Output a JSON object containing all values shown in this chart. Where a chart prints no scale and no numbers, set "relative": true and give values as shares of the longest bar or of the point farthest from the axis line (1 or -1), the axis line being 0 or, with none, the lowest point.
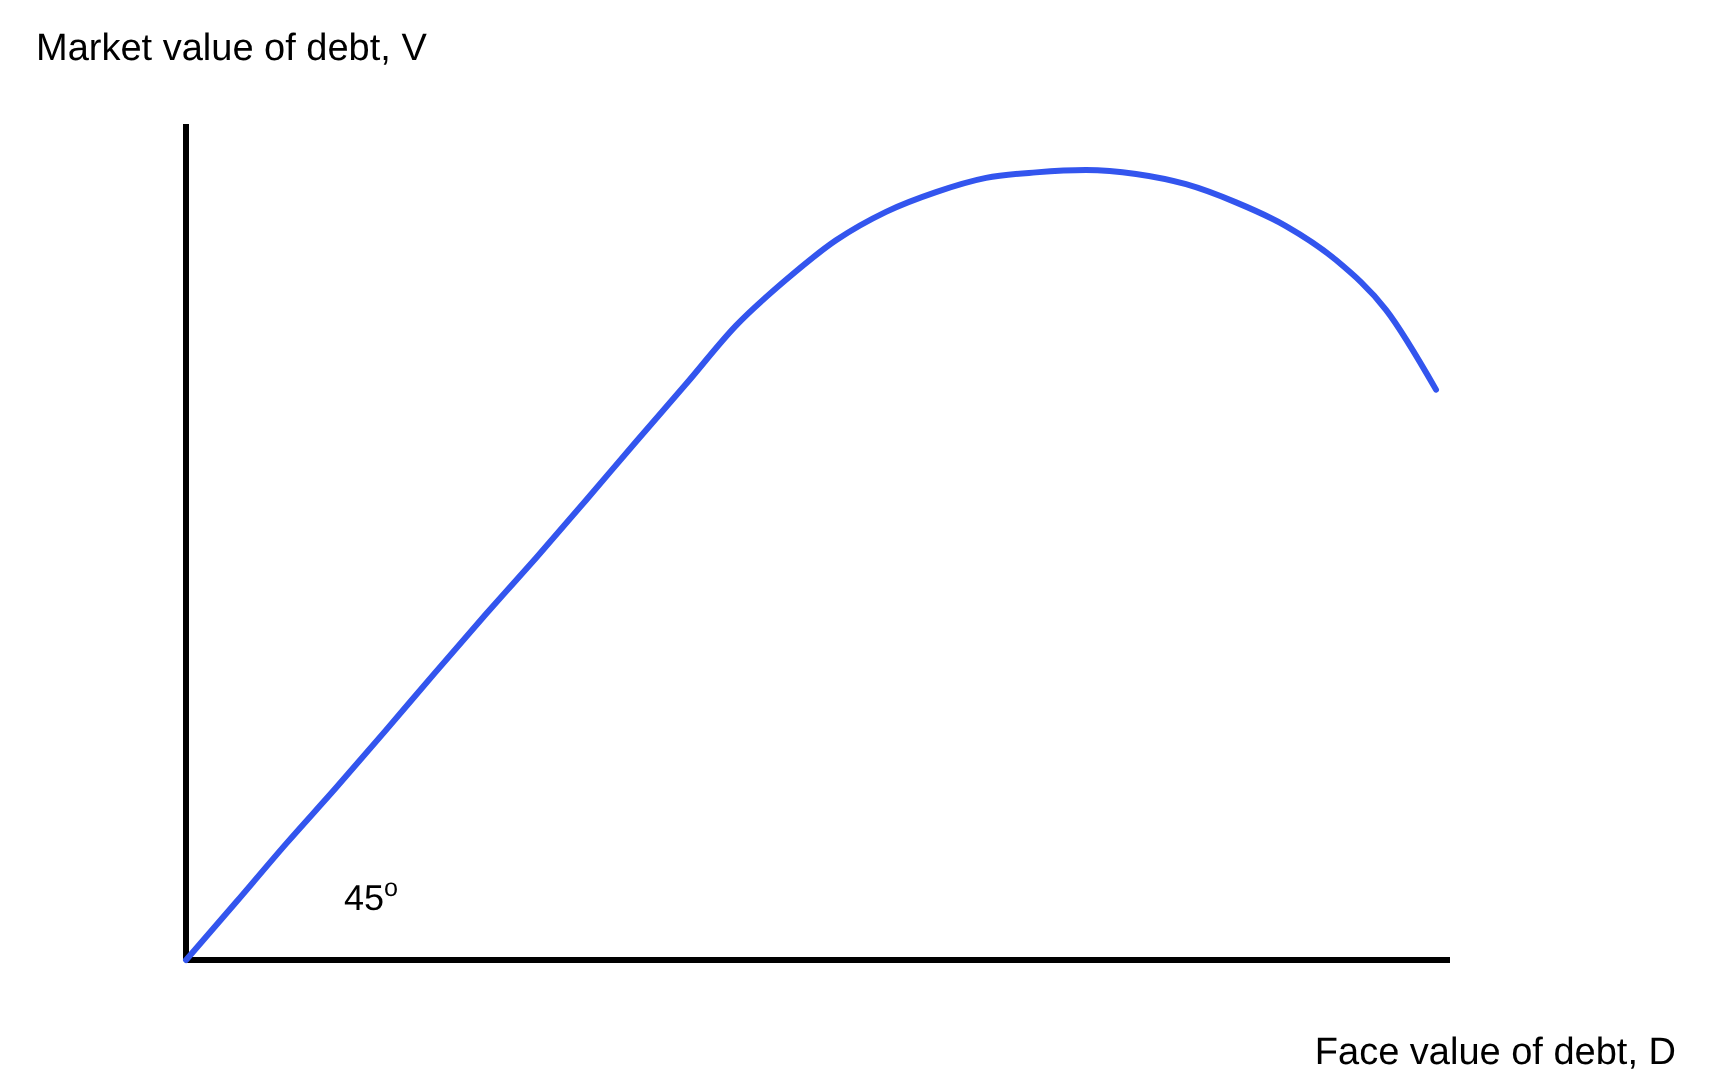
{
  "chart_data": {
    "type": "line",
    "relative": true,
    "xlabel": "Face value of debt, D",
    "ylabel": "Market value of debt, V",
    "annotations": [
      "45$^{o}$"
    ],
    "categories": [
      null,
      null,
      null,
      null,
      null,
      null,
      null,
      null,
      null,
      null,
      null,
      null,
      null,
      null,
      null,
      null,
      null,
      null,
      null,
      null,
      null,
      null,
      null,
      null,
      null,
      null
    ],
    "series": [
      {
        "color": "#3355ee",
        "values": [
          0,
          0.073,
          0.147,
          0.218,
          0.291,
          0.365,
          0.438,
          0.509,
          0.582,
          0.656,
          0.729,
          0.803,
          0.861,
          0.911,
          0.947,
          0.972,
          0.99,
          0.997,
          1,
          0.995,
          0.982,
          0.959,
          0.929,
          0.886,
          0.823,
          0.722
        ]
      }
    ],
    "marker": "none",
    "line_style": "solid"
  }
}
